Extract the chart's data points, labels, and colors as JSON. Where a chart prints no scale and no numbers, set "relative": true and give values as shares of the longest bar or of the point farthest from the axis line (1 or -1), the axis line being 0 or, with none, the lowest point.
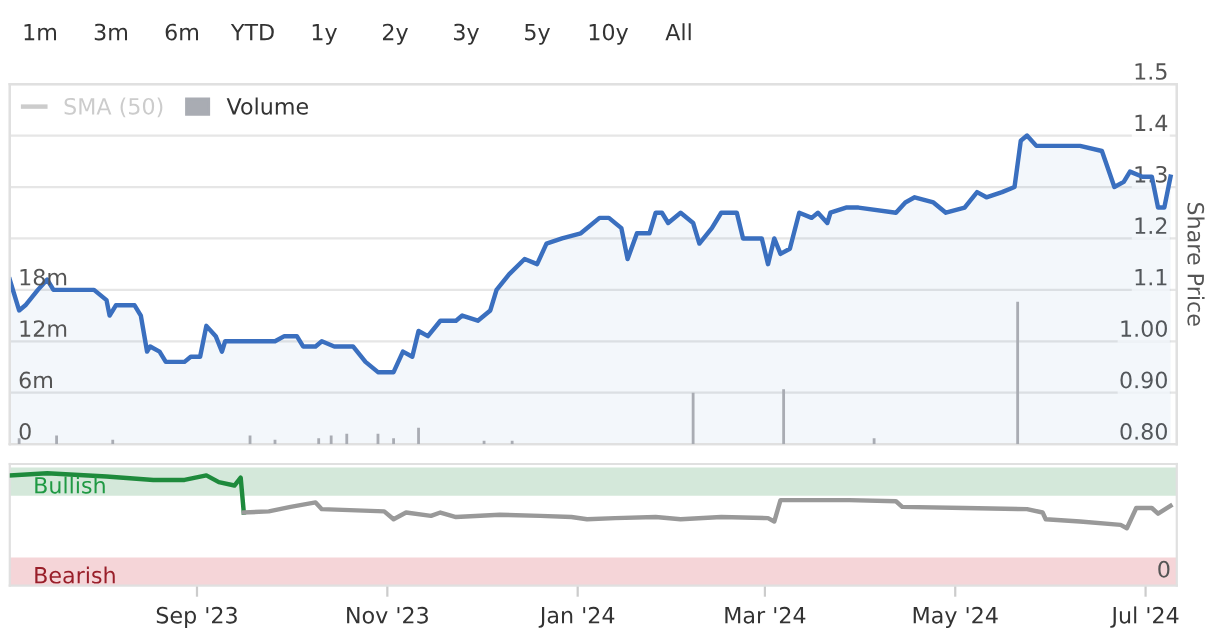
{
  "chart_data": [
    {
      "type": "area",
      "ylabel": null,
      "y2label": "Share Price",
      "annotations": [
        "1m",
        "3m",
        "6m",
        "YTD",
        "1y",
        "2y",
        "3y",
        "5y",
        "10y",
        "All"
      ],
      "xlim": [
        "2023-07-03",
        "2024-07-11"
      ],
      "ylim": [
        0,
        42000000
      ],
      "yticks": [
        {
          "value": 0,
          "label": "0"
        },
        {
          "value": 6000000,
          "label": "6m"
        },
        {
          "value": 12000000,
          "label": "12m"
        },
        {
          "value": 18000000,
          "label": "18m"
        }
      ],
      "y2lim": [
        0.8,
        1.5
      ],
      "y2ticks": [
        {
          "value": 0.8,
          "label": "0.80"
        },
        {
          "value": 0.9,
          "label": "0.90"
        },
        {
          "value": 1.0,
          "label": "1.00"
        },
        {
          "value": 1.1,
          "label": "1.1"
        },
        {
          "value": 1.2,
          "label": "1.2"
        },
        {
          "value": 1.3,
          "label": "1.3"
        },
        {
          "value": 1.4,
          "label": "1.4"
        },
        {
          "value": 1.5,
          "label": "1.5"
        }
      ],
      "grid": "y",
      "legend": "top left",
      "tick_labels": "y",
      "series": [
        {
          "name": "SMA (50)",
          "type": "line",
          "color": "#cccccc",
          "axis": "y2"
        },
        {
          "name": "Volume",
          "type": "bar",
          "color": "#a9acb3",
          "axis": "y",
          "x": [
            "2023-07-06",
            "2023-07-18",
            "2023-08-05",
            "2023-08-17",
            "2023-09-18",
            "2023-09-26",
            "2023-10-10",
            "2023-10-14",
            "2023-10-19",
            "2023-10-29",
            "2023-11-03",
            "2023-11-11",
            "2023-12-02",
            "2023-12-11",
            "2024-02-07",
            "2024-03-07",
            "2024-04-05",
            "2024-05-21"
          ],
          "values": [
            700000,
            1000000,
            500000,
            null,
            1000000,
            500000,
            700000,
            1000000,
            1200000,
            1200000,
            700000,
            1900000,
            400000,
            400000,
            6000000,
            6400000,
            700000,
            16600000
          ]
        },
        {
          "type": "area",
          "color": "#3a6fbf",
          "axis": "y2",
          "x": [
            "2023-07-03",
            "2023-07-06",
            "2023-07-08",
            "2023-07-12",
            "2023-07-15",
            "2023-07-17",
            "2023-07-30",
            "2023-08-03",
            "2023-08-04",
            "2023-08-06",
            "2023-08-12",
            "2023-08-14",
            "2023-08-16",
            "2023-08-17",
            "2023-08-20",
            "2023-08-22",
            "2023-08-28",
            "2023-08-30",
            "2023-09-02",
            "2023-09-04",
            "2023-09-07",
            "2023-09-09",
            "2023-09-10",
            "2023-09-14",
            "2023-09-19",
            "2023-09-26",
            "2023-09-29",
            "2023-10-03",
            "2023-10-05",
            "2023-10-09",
            "2023-10-11",
            "2023-10-15",
            "2023-10-21",
            "2023-10-25",
            "2023-10-29",
            "2023-11-03",
            "2023-11-06",
            "2023-11-09",
            "2023-11-11",
            "2023-11-14",
            "2023-11-18",
            "2023-11-23",
            "2023-11-25",
            "2023-11-30",
            "2023-12-04",
            "2023-12-06",
            "2023-12-10",
            "2023-12-15",
            "2023-12-19",
            "2023-12-22",
            "2023-12-27",
            "2024-01-02",
            "2024-01-08",
            "2024-01-11",
            "2024-01-15",
            "2024-01-17",
            "2024-01-20",
            "2024-01-24",
            "2024-01-26",
            "2024-01-28",
            "2024-01-30",
            "2024-02-03",
            "2024-02-07",
            "2024-02-09",
            "2024-02-13",
            "2024-02-16",
            "2024-02-21",
            "2024-02-23",
            "2024-02-29",
            "2024-03-02",
            "2024-03-04",
            "2024-03-06",
            "2024-03-09",
            "2024-03-12",
            "2024-03-16",
            "2024-03-18",
            "2024-03-21",
            "2024-03-22",
            "2024-03-27",
            "2024-03-31",
            "2024-04-12",
            "2024-04-15",
            "2024-04-18",
            "2024-04-24",
            "2024-04-28",
            "2024-05-04",
            "2024-05-08",
            "2024-05-11",
            "2024-05-16",
            "2024-05-20",
            "2024-05-22",
            "2024-05-24",
            "2024-05-27",
            "2024-06-10",
            "2024-06-17",
            "2024-06-21",
            "2024-06-24",
            "2024-06-26",
            "2024-06-30",
            "2024-07-03",
            "2024-07-05",
            "2024-07-07",
            "2024-07-09"
          ],
          "values": [
            1.12,
            1.06,
            1.07,
            1.1,
            1.12,
            1.1,
            1.1,
            1.08,
            1.05,
            1.07,
            1.07,
            1.05,
            0.98,
            0.99,
            0.98,
            0.96,
            0.96,
            0.97,
            0.97,
            1.03,
            1.01,
            0.98,
            1.0,
            1.0,
            1.0,
            1.0,
            1.01,
            1.01,
            0.99,
            0.99,
            1.0,
            0.99,
            0.99,
            0.96,
            0.94,
            0.94,
            0.98,
            0.97,
            1.02,
            1.01,
            1.04,
            1.04,
            1.05,
            1.04,
            1.06,
            1.1,
            1.13,
            1.16,
            1.15,
            1.19,
            1.2,
            1.21,
            1.24,
            1.24,
            1.22,
            1.16,
            1.21,
            1.21,
            1.25,
            1.25,
            1.23,
            1.25,
            1.23,
            1.19,
            1.22,
            1.25,
            1.25,
            1.2,
            1.2,
            1.15,
            1.2,
            1.17,
            1.18,
            1.25,
            1.24,
            1.25,
            1.23,
            1.25,
            1.26,
            1.26,
            1.25,
            1.27,
            1.28,
            1.27,
            1.25,
            1.26,
            1.29,
            1.28,
            1.29,
            1.3,
            1.39,
            1.4,
            1.38,
            1.38,
            1.37,
            1.3,
            1.31,
            1.33,
            1.32,
            1.32,
            1.26,
            1.26,
            1.32
          ]
        }
      ]
    },
    {
      "type": "line",
      "relative": true,
      "annotations": [
        "0"
      ],
      "xlim": [
        "2023-07-03",
        "2024-07-11"
      ],
      "xticks": [
        {
          "value": "2023-09-01",
          "label": "Sep '23"
        },
        {
          "value": "2023-11-01",
          "label": "Nov '23"
        },
        {
          "value": "2024-01-01",
          "label": "Jan '24"
        },
        {
          "value": "2024-03-01",
          "label": "Mar '24"
        },
        {
          "value": "2024-05-01",
          "label": "May '24"
        },
        {
          "value": "2024-07-01",
          "label": "Jul '24"
        }
      ],
      "bands": [
        {
          "axis": "y",
          "from": 0.8,
          "to": 1.05,
          "label": "Bullish",
          "color": "#d4e8da"
        },
        {
          "axis": "y",
          "from": 0,
          "to": 0.25,
          "label": "Bearish",
          "color": "#f5d5d8"
        }
      ],
      "series": [
        {
          "color": "#1e8a3c",
          "x": [
            "2023-07-03",
            "2023-07-15",
            "2023-08-03",
            "2023-08-18",
            "2023-08-28",
            "2023-09-04",
            "2023-09-08",
            "2023-09-13",
            "2023-09-15",
            "2023-09-16"
          ],
          "values": [
            0.98,
            1.0,
            0.97,
            0.94,
            0.94,
            0.98,
            0.92,
            0.89,
            0.96,
            0.65
          ]
        },
        {
          "color": "#999999",
          "x": [
            "2023-09-16",
            "2023-09-24",
            "2023-10-01",
            "2023-10-09",
            "2023-10-11",
            "2023-10-31",
            "2023-11-03",
            "2023-11-07",
            "2023-11-15",
            "2023-11-18",
            "2023-11-23",
            "2023-12-07",
            "2023-12-20",
            "2023-12-30",
            "2024-01-04",
            "2024-01-13",
            "2024-01-26",
            "2024-02-03",
            "2024-02-16",
            "2024-03-02",
            "2024-03-04",
            "2024-03-06",
            "2024-03-18",
            "2024-03-28",
            "2024-04-12",
            "2024-04-14",
            "2024-05-04",
            "2024-05-24",
            "2024-05-29",
            "2024-05-30",
            "2024-06-10",
            "2024-06-23",
            "2024-06-25",
            "2024-06-28",
            "2024-07-03",
            "2024-07-05",
            "2024-07-09"
          ],
          "values": [
            0.65,
            0.66,
            0.7,
            0.74,
            0.68,
            0.66,
            0.59,
            0.65,
            0.62,
            0.65,
            0.61,
            0.63,
            0.62,
            0.61,
            0.59,
            0.6,
            0.61,
            0.59,
            0.61,
            0.6,
            0.57,
            0.76,
            0.76,
            0.76,
            0.75,
            0.7,
            0.69,
            0.68,
            0.65,
            0.59,
            0.57,
            0.54,
            0.51,
            0.69,
            0.69,
            0.64,
            0.71
          ]
        }
      ]
    }
  ]
}
